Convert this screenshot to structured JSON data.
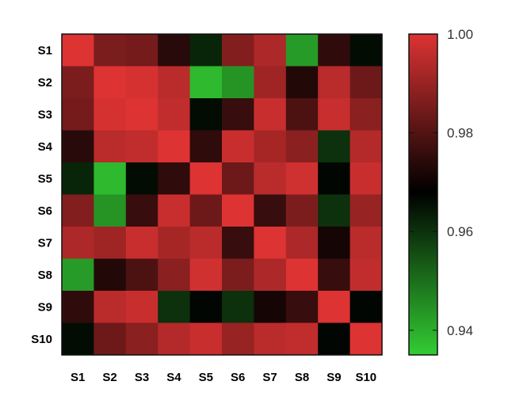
{
  "chart_data": {
    "type": "heatmap",
    "title": "",
    "xlabel": "",
    "ylabel": "",
    "rows": [
      "S1",
      "S2",
      "S3",
      "S4",
      "S5",
      "S6",
      "S7",
      "S8",
      "S9",
      "S10"
    ],
    "columns": [
      "S1",
      "S2",
      "S3",
      "S4",
      "S5",
      "S6",
      "S7",
      "S8",
      "S9",
      "S10"
    ],
    "values": [
      [
        1.0,
        0.986,
        0.985,
        0.974,
        0.962,
        0.987,
        0.993,
        0.943,
        0.975,
        0.966
      ],
      [
        0.986,
        1.0,
        0.999,
        0.995,
        0.938,
        0.944,
        0.991,
        0.973,
        0.995,
        0.984
      ],
      [
        0.985,
        0.999,
        1.0,
        0.996,
        0.966,
        0.976,
        0.997,
        0.979,
        0.997,
        0.988
      ],
      [
        0.974,
        0.995,
        0.996,
        1.0,
        0.975,
        0.997,
        0.992,
        0.988,
        0.96,
        0.994
      ],
      [
        0.962,
        0.938,
        0.966,
        0.975,
        1.0,
        0.984,
        0.995,
        0.998,
        0.967,
        0.997
      ],
      [
        0.987,
        0.944,
        0.976,
        0.997,
        0.984,
        1.0,
        0.976,
        0.986,
        0.96,
        0.99
      ],
      [
        0.993,
        0.991,
        0.997,
        0.992,
        0.995,
        0.976,
        1.0,
        0.993,
        0.971,
        0.995
      ],
      [
        0.943,
        0.973,
        0.979,
        0.988,
        0.998,
        0.986,
        0.993,
        1.0,
        0.976,
        0.996
      ],
      [
        0.975,
        0.995,
        0.997,
        0.96,
        0.967,
        0.96,
        0.971,
        0.976,
        1.0,
        0.967
      ],
      [
        0.966,
        0.984,
        0.988,
        0.994,
        0.997,
        0.99,
        0.995,
        0.996,
        0.967,
        1.0
      ]
    ],
    "colorbar": {
      "min": 0.935,
      "max": 1.0,
      "ticks": [
        0.94,
        0.96,
        0.98,
        1.0
      ],
      "tick_labels": [
        "0.94",
        "0.96",
        "0.98",
        "1.00"
      ],
      "colors": {
        "low": "#33cc33",
        "mid": "#000000",
        "high": "#dd3333"
      },
      "mid_value": 0.968
    },
    "grid": false,
    "legend": "colorbar-right"
  }
}
